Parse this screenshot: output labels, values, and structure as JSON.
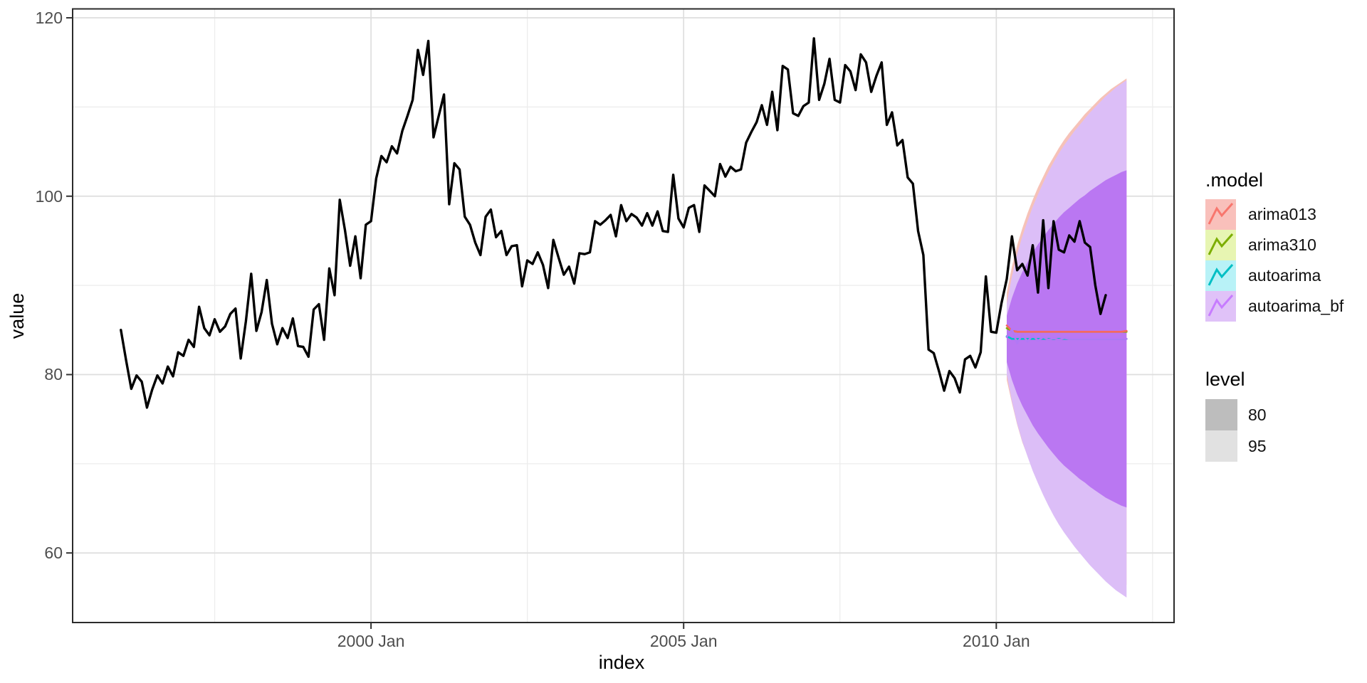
{
  "legend": {
    "model": {
      "title": ".model",
      "items": [
        {
          "label": "arima013",
          "fill": "#F9C0BB",
          "line": "#F8766D"
        },
        {
          "label": "arima310",
          "fill": "#E7F5B2",
          "line": "#7CAE00"
        },
        {
          "label": "autoarima",
          "fill": "#B8F2F7",
          "line": "#00BFC4"
        },
        {
          "label": "autoarima_bf",
          "fill": "#E0C2F8",
          "line": "#C77CFF"
        }
      ]
    },
    "level": {
      "title": "level",
      "items": [
        {
          "label": "80",
          "fill": "#BDBDBD"
        },
        {
          "label": "95",
          "fill": "#E1E1E1"
        }
      ]
    }
  },
  "chart_data": {
    "type": "line",
    "title": "",
    "xlabel": "index",
    "ylabel": "value",
    "xlim": [
      1995.228,
      2012.843
    ],
    "ylim": [
      52.2,
      121.0
    ],
    "grid": true,
    "legend_position": "right",
    "x_ticks": [
      {
        "label": "2000 Jan",
        "t": 2000
      },
      {
        "label": "2005 Jan",
        "t": 2005
      },
      {
        "label": "2010 Jan",
        "t": 2010
      }
    ],
    "y_ticks": [
      {
        "label": "120",
        "v": 120
      },
      {
        "label": "100",
        "v": 100
      },
      {
        "label": "80",
        "v": 80
      },
      {
        "label": "60",
        "v": 60
      }
    ],
    "levels": [
      80,
      95
    ],
    "history": {
      "name": "observed",
      "color": "#000000",
      "start": "1996 Jan",
      "frequency": "monthly",
      "values": [
        85.0,
        81.6,
        78.4,
        79.9,
        79.2,
        76.3,
        78.3,
        79.9,
        79.0,
        80.9,
        79.8,
        82.5,
        82.1,
        83.9,
        83.1,
        87.6,
        85.2,
        84.4,
        86.2,
        84.8,
        85.4,
        86.8,
        87.4,
        81.8,
        86.0,
        91.3,
        84.9,
        87.0,
        90.6,
        85.7,
        83.4,
        85.2,
        84.1,
        86.3,
        83.2,
        83.1,
        82.0,
        87.3,
        87.9,
        83.9,
        91.9,
        88.9,
        99.6,
        96.2,
        92.2,
        95.5,
        90.8,
        96.8,
        97.2,
        102.0,
        104.5,
        103.8,
        105.6,
        104.8,
        107.3,
        109.0,
        110.8,
        116.4,
        113.6,
        117.4,
        106.6,
        109.0,
        111.4,
        99.1,
        103.7,
        103.0,
        97.7,
        96.8,
        94.8,
        93.4,
        97.7,
        98.5,
        95.4,
        96.1,
        93.4,
        94.4,
        94.5,
        89.9,
        92.8,
        92.4,
        93.7,
        92.3,
        89.7,
        95.1,
        93.1,
        91.2,
        92.1,
        90.2,
        93.6,
        93.5,
        93.7,
        97.2,
        96.8,
        97.3,
        97.9,
        95.5,
        99.0,
        97.2,
        98.0,
        97.6,
        96.7,
        98.1,
        96.7,
        98.3,
        96.1,
        96.0,
        102.4,
        97.5,
        96.5,
        98.7,
        99.0,
        96.0,
        101.2,
        100.6,
        100.0,
        103.6,
        102.2,
        103.3,
        102.8,
        103.0,
        106.0,
        107.2,
        108.3,
        110.2,
        108.0,
        111.7,
        107.4,
        114.6,
        114.2,
        109.3,
        109.0,
        110.1,
        110.5,
        117.7,
        110.8,
        112.6,
        115.4,
        110.8,
        110.5,
        114.7,
        114.0,
        111.9,
        115.9,
        115.0,
        111.7,
        113.5,
        115.0,
        108.0,
        109.4,
        105.7,
        106.3,
        102.1,
        101.4,
        96.1,
        93.4,
        82.8,
        82.4,
        80.4,
        78.2,
        80.4,
        79.6,
        78.0,
        81.7,
        82.1,
        80.8,
        82.5,
        91.0,
        84.8,
        84.7,
        88.0,
        90.7,
        95.5,
        91.7,
        92.4,
        91.1,
        94.5,
        89.2,
        97.3,
        89.7,
        97.2,
        94.0,
        93.7,
        95.6,
        94.9,
        97.2,
        94.8,
        94.3,
        90.0,
        86.8,
        88.9
      ]
    },
    "forecasts": [
      {
        "model": "arima013",
        "line_color": "#F6685F",
        "fill95": "#F6C2B8",
        "start": "2010 Mar",
        "horizon": 24,
        "mean": [
          85.5,
          84.9,
          84.8,
          84.8,
          84.8,
          84.8,
          84.8,
          84.8,
          84.8,
          84.8,
          84.8,
          84.8,
          84.8,
          84.8,
          84.8,
          84.8,
          84.8,
          84.8,
          84.8,
          84.8,
          84.8,
          84.8,
          84.8,
          84.9
        ],
        "interval95": {
          "upper": [
            89.2,
            92.1,
            94.5,
            96.4,
            98.1,
            99.6,
            101.0,
            102.2,
            103.4,
            104.4,
            105.4,
            106.3,
            107.1,
            107.8,
            108.5,
            109.2,
            109.8,
            110.4,
            111.0,
            111.5,
            112.0,
            112.4,
            112.8,
            113.2
          ],
          "lower": [
            79.4,
            76.8,
            74.4,
            72.4,
            70.9,
            69.4,
            68.1,
            66.9,
            65.8,
            64.8,
            63.9,
            63.1,
            62.3,
            61.6,
            60.9,
            60.3,
            59.7,
            59.1,
            58.6,
            58.1,
            57.6,
            57.2,
            56.8,
            56.4
          ]
        }
      },
      {
        "model": "arima310",
        "line_color": "#7CAE00",
        "start": "2010 Mar",
        "horizon": 24,
        "mean": [
          85.2,
          84.9,
          84.8,
          84.8,
          84.8,
          84.8,
          84.8,
          84.8,
          84.8,
          84.8,
          84.8,
          84.8,
          84.8,
          84.8,
          84.8,
          84.8,
          84.8,
          84.8,
          84.8,
          84.8,
          84.8,
          84.8,
          84.8,
          84.8
        ]
      },
      {
        "model": "autoarima",
        "line_color": "#00BFC4",
        "start": "2010 Mar",
        "horizon": 24,
        "mean": [
          84.3,
          84.0,
          84.0,
          84.0,
          84.0,
          84.0,
          84.0,
          84.0,
          84.0,
          84.0,
          84.0,
          84.0,
          84.0,
          84.0,
          84.0,
          84.0,
          84.0,
          84.0,
          84.0,
          84.0,
          84.0,
          84.0,
          84.0,
          84.0
        ]
      },
      {
        "model": "autoarima_bf",
        "line_color": "#B278F5",
        "fill95": "#DCBEF7",
        "fill80": "#BA77F2",
        "start": "2010 Mar",
        "horizon": 24,
        "mean": [
          84.2,
          85.1,
          83.5,
          84.5,
          83.7,
          84.4,
          83.8,
          84.2,
          83.9,
          84.1,
          83.9,
          84.1,
          84.0,
          84.0,
          84.0,
          84.0,
          84.0,
          84.0,
          84.0,
          84.0,
          84.0,
          84.0,
          84.0,
          84.0
        ],
        "interval80": {
          "upper": [
            86.6,
            88.6,
            90.2,
            91.5,
            92.6,
            93.7,
            94.6,
            95.4,
            96.2,
            96.9,
            97.6,
            98.2,
            98.7,
            99.2,
            99.7,
            100.1,
            100.6,
            101.0,
            101.4,
            101.8,
            102.1,
            102.4,
            102.7,
            102.9
          ],
          "lower": [
            81.4,
            79.4,
            77.8,
            76.5,
            75.4,
            74.3,
            73.4,
            72.6,
            71.8,
            71.1,
            70.4,
            69.8,
            69.3,
            68.8,
            68.3,
            67.9,
            67.4,
            67.0,
            66.6,
            66.2,
            65.9,
            65.6,
            65.3,
            65.1
          ]
        },
        "interval95": {
          "upper": [
            88.0,
            91.0,
            93.5,
            95.5,
            97.2,
            98.8,
            100.2,
            101.5,
            102.7,
            103.8,
            104.8,
            105.7,
            106.5,
            107.3,
            108.0,
            108.7,
            109.4,
            110.0,
            110.6,
            111.2,
            111.7,
            112.2,
            112.6,
            113.0
          ],
          "lower": [
            80.0,
            77.0,
            74.5,
            72.5,
            70.8,
            69.2,
            67.8,
            66.5,
            65.3,
            64.2,
            63.2,
            62.3,
            61.5,
            60.7,
            60.0,
            59.3,
            58.6,
            58.0,
            57.4,
            56.8,
            56.3,
            55.8,
            55.4,
            55.0
          ]
        }
      }
    ]
  }
}
